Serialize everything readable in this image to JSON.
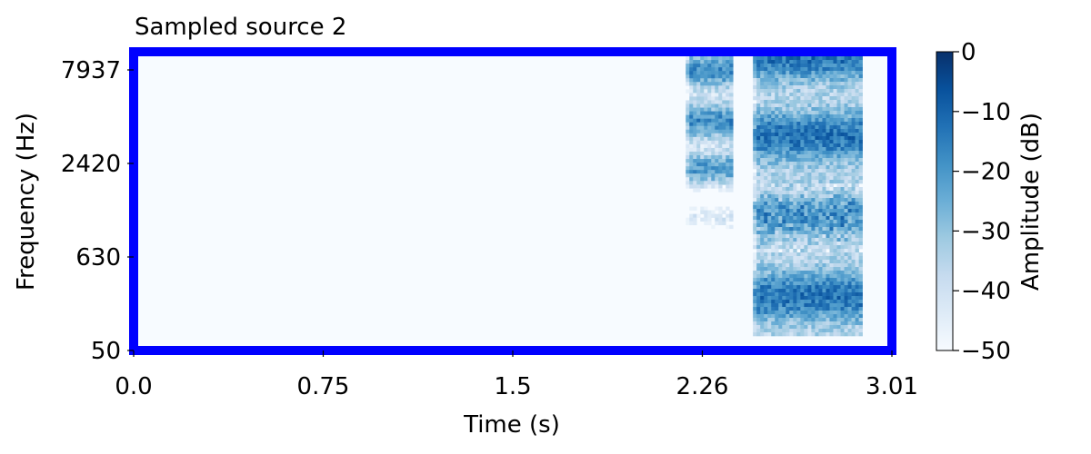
{
  "chart_data": {
    "type": "heatmap",
    "title": "Sampled source 2",
    "xlabel": "Time (s)",
    "ylabel": "Frequency (Hz)",
    "x_ticks": [
      "0.0",
      "0.75",
      "1.5",
      "2.26",
      "3.01"
    ],
    "y_ticks": [
      "50",
      "630",
      "2420",
      "7937"
    ],
    "xlim": [
      0.0,
      3.01
    ],
    "y_scale": "log",
    "colorbar": {
      "label": "Amplitude (dB)",
      "ticks": [
        "0",
        "−10",
        "−20",
        "−30",
        "−40",
        "−50"
      ],
      "range": [
        -50,
        0
      ],
      "colormap": "Blues"
    },
    "segments": [
      {
        "t_start": 2.2,
        "t_end": 2.39,
        "freq_min": 400,
        "freq_max": 10000,
        "peak_db": -10
      },
      {
        "t_start": 2.47,
        "t_end": 2.91,
        "freq_min": 60,
        "freq_max": 10000,
        "peak_db": -5
      }
    ],
    "grid": false,
    "legend": "none"
  },
  "colors": {
    "frame": "#0000ff",
    "background_cell": "#f7fbff",
    "dark_cell": "#08306b"
  }
}
